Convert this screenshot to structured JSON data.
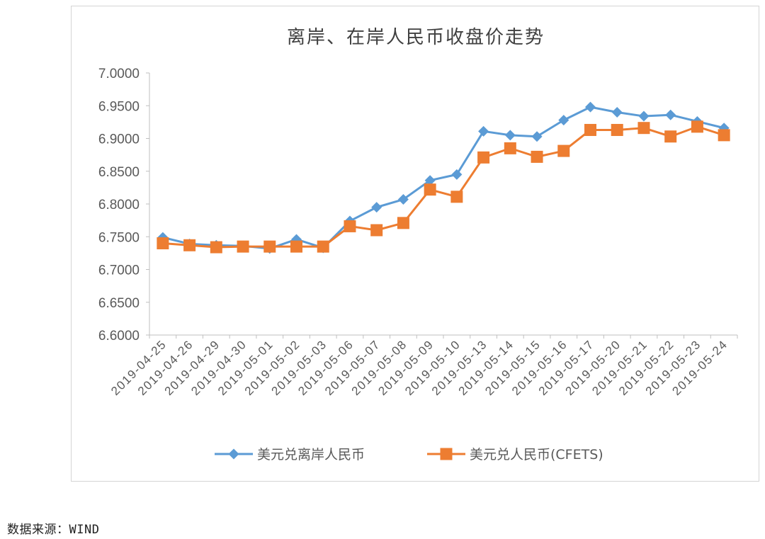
{
  "chart_data": {
    "type": "line",
    "title": "离岸、在岸人民币收盘价走势",
    "categories": [
      "2019-04-25",
      "2019-04-26",
      "2019-04-29",
      "2019-04-30",
      "2019-05-01",
      "2019-05-02",
      "2019-05-03",
      "2019-05-06",
      "2019-05-07",
      "2019-05-08",
      "2019-05-09",
      "2019-05-10",
      "2019-05-13",
      "2019-05-14",
      "2019-05-15",
      "2019-05-16",
      "2019-05-17",
      "2019-05-20",
      "2019-05-21",
      "2019-05-22",
      "2019-05-23",
      "2019-05-24"
    ],
    "y_ticks": [
      "7.0000",
      "6.9500",
      "6.9000",
      "6.8500",
      "6.8000",
      "6.7500",
      "6.7000",
      "6.6500",
      "6.6000"
    ],
    "ylim": [
      6.6,
      7.0
    ],
    "grid": false,
    "legend_position": "bottom",
    "series": [
      {
        "name": "美元兑离岸人民币",
        "color": "#5b9bd5",
        "marker": "diamond",
        "values": [
          6.749,
          6.739,
          6.737,
          6.736,
          6.732,
          6.746,
          6.733,
          6.774,
          6.795,
          6.807,
          6.836,
          6.845,
          6.911,
          6.905,
          6.903,
          6.928,
          6.948,
          6.94,
          6.934,
          6.936,
          6.926,
          6.916
        ]
      },
      {
        "name": "美元兑人民币(CFETS)",
        "color": "#ed7d31",
        "marker": "square",
        "values": [
          6.74,
          6.737,
          6.734,
          6.735,
          6.735,
          6.735,
          6.735,
          6.766,
          6.76,
          6.771,
          6.822,
          6.811,
          6.871,
          6.885,
          6.872,
          6.881,
          6.913,
          6.913,
          6.916,
          6.903,
          6.918,
          6.905
        ]
      }
    ]
  },
  "source": {
    "label": "数据来源：",
    "value": "WIND"
  }
}
